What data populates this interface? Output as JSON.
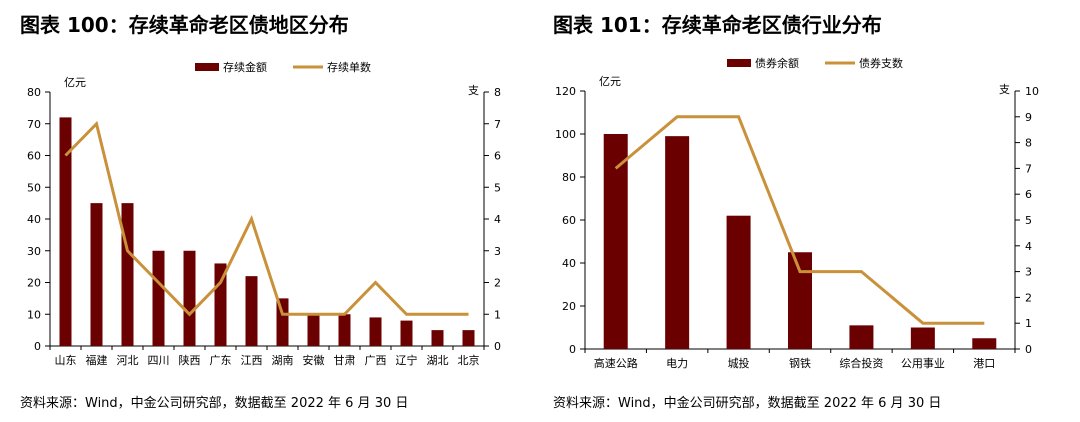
{
  "charts": [
    {
      "title": "图表 100：存续革命老区债地区分布",
      "source": "资料来源：Wind，中金公司研究部，数据截至 2022 年 6 月 30 日",
      "chart_data": {
        "type": "bar",
        "categories": [
          "山东",
          "福建",
          "河北",
          "四川",
          "陕西",
          "广东",
          "江西",
          "湖南",
          "安徽",
          "甘肃",
          "广西",
          "辽宁",
          "湖北",
          "北京"
        ],
        "series": [
          {
            "name": "存续金额",
            "type": "bar",
            "axis": "left",
            "values": [
              72,
              45,
              45,
              30,
              30,
              26,
              22,
              15,
              10,
              10,
              9,
              8,
              5,
              5
            ]
          },
          {
            "name": "存续单数",
            "type": "line",
            "axis": "right",
            "values": [
              6,
              7,
              3,
              2,
              1,
              2,
              4,
              1,
              1,
              1,
              2,
              1,
              1,
              1
            ]
          }
        ],
        "ylabel": "亿元",
        "y2label": "支",
        "ylim": [
          0,
          80
        ],
        "yticks": [
          0,
          10,
          20,
          30,
          40,
          50,
          60,
          70,
          80
        ],
        "y2lim": [
          0,
          8
        ],
        "y2ticks": [
          0,
          1,
          2,
          3,
          4,
          5,
          6,
          7,
          8
        ],
        "legend_position": "top-center",
        "grid": false,
        "colors": {
          "bar": "#6b0000",
          "line": "#c8913a"
        }
      }
    },
    {
      "title": "图表 101：存续革命老区债行业分布",
      "source": "资料来源：Wind，中金公司研究部，数据截至 2022 年 6 月 30 日",
      "chart_data": {
        "type": "bar",
        "categories": [
          "高速公路",
          "电力",
          "城投",
          "钢铁",
          "综合投资",
          "公用事业",
          "港口"
        ],
        "series": [
          {
            "name": "债券余额",
            "type": "bar",
            "axis": "left",
            "values": [
              100,
              99,
              62,
              45,
              11,
              10,
              5
            ]
          },
          {
            "name": "债券支数",
            "type": "line",
            "axis": "right",
            "values": [
              7,
              9,
              9,
              3,
              3,
              1,
              1
            ]
          }
        ],
        "ylabel": "亿元",
        "y2label": "支",
        "ylim": [
          0,
          120
        ],
        "yticks": [
          0,
          20,
          40,
          60,
          80,
          100,
          120
        ],
        "y2lim": [
          0,
          10
        ],
        "y2ticks": [
          0,
          1,
          2,
          3,
          4,
          5,
          6,
          7,
          8,
          9,
          10
        ],
        "legend_position": "top-center",
        "grid": false,
        "colors": {
          "bar": "#6b0000",
          "line": "#c8913a"
        }
      }
    }
  ]
}
